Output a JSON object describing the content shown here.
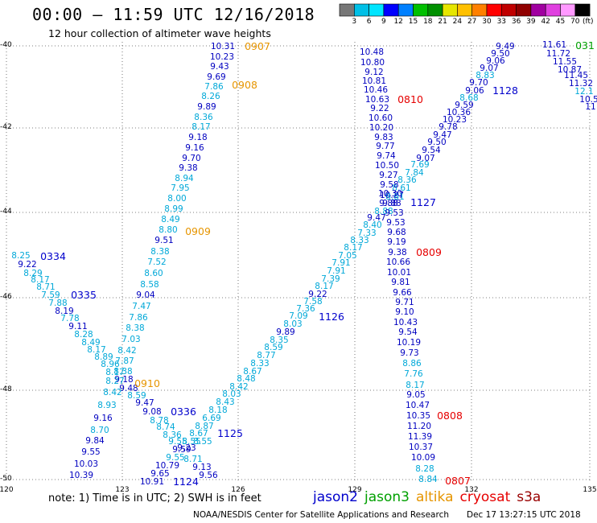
{
  "header": {
    "title": "00:00 – 11:59 UTC 12/16/2018",
    "subtitle": "12 hour collection of altimeter wave heights"
  },
  "colorbar": {
    "colors": [
      "#777777",
      "#00bfe6",
      "#00e5ff",
      "#0000ff",
      "#0080ff",
      "#00c000",
      "#009000",
      "#e6e600",
      "#ffc000",
      "#ff8000",
      "#ff0000",
      "#c00000",
      "#900000",
      "#a000a0",
      "#e040e0",
      "#ff99ff",
      "#000000"
    ],
    "labels": [
      "3",
      "6",
      "9",
      "12",
      "15",
      "18",
      "21",
      "24",
      "27",
      "30",
      "33",
      "36",
      "39",
      "42",
      "45",
      "70"
    ],
    "unit": "(ft)"
  },
  "axes": {
    "lat_ticks": [
      "-40",
      "-42",
      "-44",
      "-46",
      "-48",
      "-50"
    ],
    "lon_ticks": [
      "120",
      "123",
      "126",
      "129",
      "132",
      "135"
    ]
  },
  "tracks": [
    {
      "sat": "altika",
      "time_label": "0907",
      "time_pos": [
        320,
        57
      ],
      "color": "#e69500",
      "points": [
        [
          277,
          57,
          "10.31",
          "n"
        ],
        [
          276,
          70,
          "10.23",
          "n"
        ],
        [
          273,
          82,
          "9.43",
          "n"
        ],
        [
          269,
          95,
          "9.69",
          "n"
        ],
        [
          266,
          107,
          "7.86",
          "c"
        ],
        [
          262,
          119,
          "8.26",
          "c"
        ],
        [
          257,
          132,
          "9.89",
          "n"
        ],
        [
          253,
          145,
          "8.36",
          "c"
        ],
        [
          250,
          157,
          "8.17",
          "c"
        ],
        [
          246,
          170,
          "9.18",
          "n"
        ],
        [
          242,
          183,
          "9.16",
          "n"
        ],
        [
          238,
          196,
          "9.70",
          "n"
        ],
        [
          234,
          208,
          "9.38",
          "n"
        ],
        [
          229,
          221,
          "8.94",
          "c"
        ],
        [
          224,
          233,
          "7.95",
          "c"
        ],
        [
          220,
          246,
          "8.00",
          "c"
        ],
        [
          216,
          259,
          "8.99",
          "c"
        ],
        [
          212,
          272,
          "8.49",
          "c"
        ],
        [
          209,
          285,
          "8.80",
          "c"
        ],
        [
          204,
          298,
          "9.51",
          "n"
        ],
        [
          199,
          312,
          "8.38",
          "c"
        ],
        [
          195,
          325,
          "7.52",
          "c"
        ],
        [
          191,
          339,
          "8.60",
          "c"
        ],
        [
          186,
          353,
          "8.58",
          "c"
        ],
        [
          181,
          366,
          "9.04",
          "n"
        ],
        [
          176,
          380,
          "7.47",
          "c"
        ],
        [
          172,
          394,
          "7.86",
          "c"
        ],
        [
          168,
          407,
          "8.38",
          "c"
        ],
        [
          163,
          421,
          "7.03",
          "c"
        ],
        [
          158,
          435,
          "8.42",
          "c"
        ],
        [
          155,
          448,
          "7.87",
          "c"
        ],
        [
          153,
          461,
          "8.38",
          "c"
        ],
        [
          154,
          471,
          "9.18",
          "n"
        ],
        [
          160,
          482,
          "9.48",
          "n"
        ],
        [
          170,
          491,
          "8.59",
          "c"
        ],
        [
          180,
          500,
          "9.47",
          "n"
        ],
        [
          189,
          511,
          "9.08",
          "n"
        ],
        [
          198,
          522,
          "8.78",
          "c"
        ],
        [
          206,
          530,
          "8.74",
          "c"
        ],
        [
          214,
          540,
          "8.36",
          "c"
        ],
        [
          221,
          548,
          "9.55",
          "c"
        ],
        [
          232,
          556,
          "9.23",
          "n"
        ]
      ]
    },
    {
      "sat": "altika",
      "time_label": "0908",
      "time_pos": [
        304,
        105
      ],
      "color": "#e69500",
      "points": []
    },
    {
      "sat": "altika",
      "time_label": "0909",
      "time_pos": [
        246,
        287
      ],
      "color": "#e69500",
      "points": []
    },
    {
      "sat": "altika",
      "time_label": "0910",
      "time_pos": [
        183,
        476
      ],
      "color": "#e69500",
      "points": []
    },
    {
      "sat": "jason2",
      "time_label": "0334",
      "time_pos": [
        66,
        318
      ],
      "color": "#0000cc",
      "points": [
        [
          26,
          317,
          "8.25",
          "c"
        ],
        [
          34,
          328,
          "9.22",
          "n"
        ],
        [
          41,
          339,
          "8.29",
          "c"
        ],
        [
          50,
          347,
          "8.17",
          "c"
        ],
        [
          57,
          356,
          "8.71",
          "c"
        ],
        [
          63,
          366,
          "7.59",
          "c"
        ],
        [
          72,
          376,
          "7.88",
          "c"
        ],
        [
          80,
          386,
          "8.19",
          "n"
        ],
        [
          87,
          395,
          "7.78",
          "c"
        ],
        [
          97,
          405,
          "9.11",
          "n"
        ],
        [
          104,
          415,
          "8.28",
          "c"
        ],
        [
          113,
          425,
          "8.49",
          "c"
        ],
        [
          120,
          434,
          "8.17",
          "c"
        ],
        [
          129,
          443,
          "8.89",
          "c"
        ],
        [
          137,
          452,
          "8.96",
          "c"
        ],
        [
          143,
          462,
          "8.17",
          "c"
        ],
        [
          143,
          473,
          "8.27",
          "c"
        ],
        [
          140,
          487,
          "8.42",
          "c"
        ],
        [
          133,
          503,
          "8.93",
          "c"
        ],
        [
          128,
          519,
          "9.16",
          "n"
        ],
        [
          124,
          534,
          "8.70",
          "c"
        ],
        [
          118,
          547,
          "9.84",
          "n"
        ],
        [
          113,
          561,
          "9.55",
          "n"
        ],
        [
          107,
          576,
          "10.03",
          "n"
        ],
        [
          101,
          590,
          "10.39",
          "n"
        ]
      ]
    },
    {
      "sat": "jason2",
      "time_label": "0335",
      "time_pos": [
        104,
        366
      ],
      "color": "#0000cc",
      "points": []
    },
    {
      "sat": "jason2",
      "time_label": "0336",
      "time_pos": [
        228,
        511
      ],
      "color": "#0000cc",
      "points": []
    },
    {
      "sat": "jason2",
      "time_label": "1124",
      "time_pos": [
        231,
        598
      ],
      "color": "#0000cc",
      "points": [
        [
          189,
          598,
          "10.91",
          "n"
        ],
        [
          199,
          588,
          "9.65",
          "n"
        ],
        [
          208,
          578,
          "10.79",
          "n"
        ],
        [
          218,
          568,
          "9.55",
          "c"
        ],
        [
          226,
          558,
          "9.59",
          "n"
        ],
        [
          238,
          548,
          "8.55",
          "c"
        ],
        [
          240,
          570,
          "8.71",
          "c"
        ],
        [
          251,
          580,
          "9.13",
          "n"
        ],
        [
          259,
          590,
          "9.56",
          "n"
        ]
      ]
    },
    {
      "sat": "jason2",
      "time_label": "1125",
      "time_pos": [
        286,
        538
      ],
      "color": "#0000cc",
      "points": [
        [
          252,
          548,
          "8.55",
          "c"
        ],
        [
          247,
          538,
          "8.67",
          "c"
        ],
        [
          254,
          529,
          "8.87",
          "c"
        ],
        [
          263,
          519,
          "6.69",
          "c"
        ],
        [
          271,
          509,
          "8.18",
          "c"
        ],
        [
          280,
          499,
          "8.43",
          "c"
        ],
        [
          288,
          489,
          "8.03",
          "c"
        ],
        [
          297,
          480,
          "8.42",
          "c"
        ],
        [
          306,
          470,
          "8.48",
          "c"
        ],
        [
          314,
          461,
          "8.67",
          "c"
        ],
        [
          323,
          451,
          "8.33",
          "c"
        ],
        [
          331,
          441,
          "8.77",
          "c"
        ],
        [
          340,
          431,
          "8.59",
          "c"
        ],
        [
          347,
          422,
          "8.35",
          "c"
        ],
        [
          355,
          412,
          "9.89",
          "n"
        ],
        [
          364,
          402,
          "8.03",
          "c"
        ],
        [
          371,
          392,
          "7.09",
          "c"
        ],
        [
          380,
          383,
          "7.36",
          "c"
        ],
        [
          389,
          374,
          "7.58",
          "c"
        ],
        [
          395,
          365,
          "9.22",
          "n"
        ],
        [
          403,
          355,
          "8.17",
          "c"
        ],
        [
          411,
          346,
          "7.39",
          "c"
        ],
        [
          418,
          336,
          "7.91",
          "c"
        ],
        [
          424,
          326,
          "7.91",
          "c"
        ],
        [
          432,
          317,
          "7.05",
          "c"
        ],
        [
          439,
          307,
          "8.17",
          "c"
        ],
        [
          447,
          298,
          "8.33",
          "c"
        ],
        [
          456,
          289,
          "7.33",
          "c"
        ],
        [
          463,
          279,
          "8.40",
          "c"
        ],
        [
          468,
          270,
          "9.47",
          "n"
        ],
        [
          477,
          262,
          "8.88",
          "c"
        ],
        [
          483,
          252,
          "9.88",
          "n"
        ],
        [
          487,
          242,
          "10.27",
          "n"
        ]
      ]
    },
    {
      "sat": "jason2",
      "time_label": "1126",
      "time_pos": [
        412,
        393
      ],
      "color": "#0000cc",
      "points": []
    },
    {
      "sat": "jason2",
      "time_label": "1127",
      "time_pos": [
        526,
        251
      ],
      "color": "#0000cc",
      "points": [
        [
          491,
          244,
          "8.81",
          "c"
        ],
        [
          499,
          233,
          "8.61",
          "c"
        ],
        [
          506,
          223,
          "8.36",
          "c"
        ],
        [
          515,
          214,
          "7.84",
          "c"
        ],
        [
          522,
          204,
          "7.69",
          "c"
        ],
        [
          529,
          196,
          "9.07",
          "n"
        ],
        [
          536,
          186,
          "9.54",
          "n"
        ],
        [
          543,
          176,
          "9.50",
          "n"
        ],
        [
          550,
          167,
          "9.47",
          "n"
        ],
        [
          557,
          157,
          "9.78",
          "n"
        ],
        [
          565,
          148,
          "10.23",
          "n"
        ],
        [
          570,
          139,
          "10.36",
          "n"
        ],
        [
          577,
          130,
          "9.59",
          "n"
        ],
        [
          583,
          121,
          "8.68",
          "c"
        ],
        [
          590,
          112,
          "9.06",
          "n"
        ],
        [
          595,
          102,
          "9.70",
          "n"
        ],
        [
          603,
          93,
          "8.83",
          "c"
        ],
        [
          608,
          84,
          "9.07",
          "n"
        ],
        [
          616,
          75,
          "9.06",
          "n"
        ],
        [
          622,
          66,
          "9.50",
          "n"
        ],
        [
          628,
          57,
          "9.49",
          "n"
        ]
      ]
    },
    {
      "sat": "jason2",
      "time_label": "1128",
      "time_pos": [
        628,
        112
      ],
      "color": "#0000cc",
      "points": []
    },
    {
      "sat": "jason2",
      "time_label": "",
      "time_pos": [
        0,
        0
      ],
      "color": "#0000cc",
      "points": [
        [
          689,
          55,
          "11.61",
          "n"
        ],
        [
          694,
          66,
          "11.72",
          "n"
        ],
        [
          702,
          76,
          "11.55",
          "n"
        ],
        [
          708,
          86,
          "10.87",
          "n"
        ],
        [
          716,
          93,
          "11.45",
          "n"
        ],
        [
          722,
          103,
          "11.32",
          "n"
        ],
        [
          726,
          113,
          "12.1",
          "c"
        ],
        [
          732,
          123,
          "10.5",
          "n"
        ],
        [
          734,
          132,
          "11",
          "n"
        ]
      ]
    },
    {
      "sat": "jason3",
      "time_label": "031",
      "time_pos": [
        727,
        56
      ],
      "color": "#00a000",
      "points": []
    },
    {
      "sat": "cryosat",
      "time_label": "0810",
      "time_pos": [
        510,
        123
      ],
      "color": "#e60000",
      "points": [
        [
          462,
          64,
          "10.48",
          "n"
        ],
        [
          463,
          77,
          "10.80",
          "n"
        ],
        [
          465,
          89,
          "9.12",
          "n"
        ],
        [
          465,
          100,
          "10.81",
          "n"
        ],
        [
          467,
          111,
          "10.46",
          "n"
        ],
        [
          469,
          123,
          "10.63",
          "n"
        ],
        [
          472,
          134,
          "9.22",
          "n"
        ],
        [
          473,
          146,
          "10.60",
          "n"
        ],
        [
          474,
          158,
          "10.20",
          "n"
        ],
        [
          477,
          170,
          "9.83",
          "n"
        ],
        [
          479,
          181,
          "9.77",
          "n"
        ],
        [
          480,
          193,
          "9.74",
          "n"
        ],
        [
          481,
          205,
          "10.50",
          "n"
        ],
        [
          483,
          217,
          "9.27",
          "n"
        ],
        [
          484,
          229,
          "9.58",
          "n"
        ],
        [
          485,
          240,
          "10.30",
          "n"
        ],
        [
          487,
          252,
          "9.88",
          "n"
        ],
        [
          490,
          264,
          "9.53",
          "n"
        ],
        [
          492,
          276,
          "9.53",
          "n"
        ],
        [
          493,
          288,
          "9.68",
          "n"
        ],
        [
          493,
          300,
          "9.19",
          "n"
        ],
        [
          494,
          313,
          "9.38",
          "n"
        ],
        [
          495,
          325,
          "10.66",
          "n"
        ],
        [
          496,
          338,
          "10.01",
          "n"
        ],
        [
          498,
          350,
          "9.81",
          "n"
        ],
        [
          500,
          363,
          "9.66",
          "n"
        ],
        [
          503,
          375,
          "9.71",
          "n"
        ],
        [
          503,
          387,
          "9.10",
          "n"
        ],
        [
          504,
          400,
          "10.43",
          "n"
        ],
        [
          507,
          412,
          "9.54",
          "n"
        ],
        [
          508,
          425,
          "10.19",
          "n"
        ],
        [
          509,
          438,
          "9.73",
          "n"
        ],
        [
          512,
          451,
          "8.86",
          "c"
        ],
        [
          514,
          464,
          "7.76",
          "c"
        ],
        [
          516,
          478,
          "8.17",
          "c"
        ],
        [
          517,
          490,
          "9.05",
          "n"
        ],
        [
          519,
          503,
          "10.47",
          "n"
        ],
        [
          520,
          516,
          "10.35",
          "n"
        ],
        [
          521,
          529,
          "11.20",
          "n"
        ],
        [
          522,
          542,
          "11.39",
          "n"
        ],
        [
          523,
          555,
          "10.37",
          "n"
        ],
        [
          526,
          568,
          "10.09",
          "n"
        ],
        [
          528,
          582,
          "8.28",
          "c"
        ],
        [
          532,
          595,
          "8.84",
          "c"
        ]
      ]
    },
    {
      "sat": "cryosat",
      "time_label": "0809",
      "time_pos": [
        533,
        313
      ],
      "color": "#e60000",
      "points": []
    },
    {
      "sat": "cryosat",
      "time_label": "0808",
      "time_pos": [
        559,
        516
      ],
      "color": "#e60000",
      "points": []
    },
    {
      "sat": "cryosat",
      "time_label": "0807",
      "time_pos": [
        569,
        597
      ],
      "color": "#e60000",
      "points": []
    }
  ],
  "note": "note:  1) Time is in UTC;  2) SWH is in feet",
  "legend": [
    {
      "name": "jason2",
      "color": "#0000cc"
    },
    {
      "name": "jason3",
      "color": "#00a000"
    },
    {
      "name": "altika",
      "color": "#e69500"
    },
    {
      "name": "cryosat",
      "color": "#e60000"
    },
    {
      "name": "s3a",
      "color": "#990000"
    }
  ],
  "footer": "NOAA/NESDIS Center for Satellite Applications and Research",
  "timestamp": "Dec 17 13:27:15 UTC 2018"
}
